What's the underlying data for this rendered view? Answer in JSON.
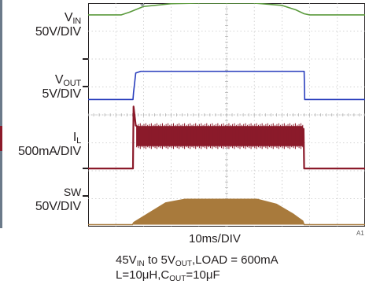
{
  "channels": [
    {
      "name": "V",
      "sub": "IN",
      "scale": "50V/DIV",
      "color": "#5a9a3c"
    },
    {
      "name": "V",
      "sub": "OUT",
      "scale": "5V/DIV",
      "color": "#2a3fbd"
    },
    {
      "name": "I",
      "sub": "L",
      "scale": "500mA/DIV",
      "color": "#8b1a2a"
    },
    {
      "name": "SW",
      "sub": "",
      "scale": "50V/DIV",
      "color": "#a87a3c"
    }
  ],
  "x_scale": "10ms/DIV",
  "caption": {
    "line1": {
      "a": "45V",
      "a_sub": "IN",
      "b": " to 5V",
      "b_sub": "OUT",
      "c": ",LOAD = 600mA"
    },
    "line2": {
      "a": "L=10μH,C",
      "a_sub": "OUT",
      "b": "=10μF"
    }
  },
  "figure_id": "A1",
  "chart_data": {
    "type": "line",
    "xlabel": "10ms/DIV",
    "xlim": [
      0,
      10
    ],
    "ylim": [
      0,
      8
    ],
    "grid": true,
    "x_divisions": 10,
    "y_divisions": 8,
    "series": [
      {
        "name": "V_IN",
        "color": "#5a9a3c",
        "x": [
          0,
          1.2,
          1.5,
          2.0,
          3.0,
          4.0,
          5.0,
          6.0,
          7.0,
          7.5,
          7.8,
          8.0,
          10
        ],
        "y": [
          7.58,
          7.58,
          7.68,
          7.88,
          7.98,
          8.0,
          8.0,
          8.0,
          7.92,
          7.76,
          7.62,
          7.58,
          7.58
        ]
      },
      {
        "name": "V_OUT",
        "color": "#2a3fbd",
        "x": [
          0,
          1.62,
          1.64,
          1.72,
          1.9,
          7.7,
          7.8,
          7.82,
          10
        ],
        "y": [
          4.55,
          4.55,
          4.8,
          5.5,
          5.56,
          5.56,
          5.56,
          4.55,
          4.55
        ]
      },
      {
        "name": "I_L",
        "color": "#8b1a2a",
        "x": [
          0,
          1.62,
          1.64,
          1.72,
          1.9,
          7.75,
          7.78,
          7.8,
          10
        ],
        "y": [
          2.08,
          2.08,
          4.3,
          3.62,
          3.5,
          3.5,
          3.5,
          2.08,
          2.08
        ],
        "band": {
          "x_start": 1.75,
          "x_end": 7.75,
          "low": 2.88,
          "high": 3.6
        }
      },
      {
        "name": "SW",
        "color": "#a87a3c",
        "x": [
          0,
          1.6,
          1.65,
          2.8,
          3.5,
          6.1,
          6.8,
          7.4,
          7.75,
          7.8,
          10
        ],
        "y": [
          0.07,
          0.07,
          0.15,
          0.85,
          0.98,
          0.98,
          0.8,
          0.45,
          0.2,
          0.07,
          0.07
        ]
      }
    ]
  }
}
